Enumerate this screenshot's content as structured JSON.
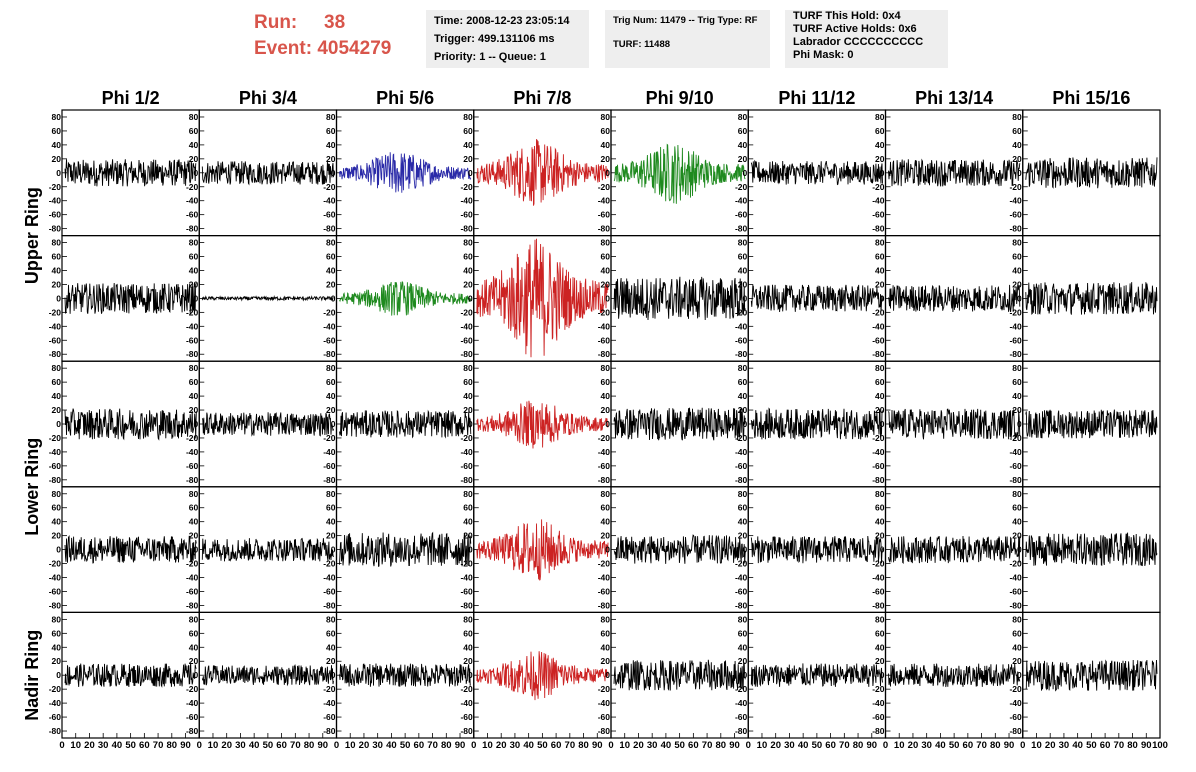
{
  "header": {
    "run_label": "Run:",
    "run_value": "38",
    "event_label": "Event:",
    "event_value": "4054279"
  },
  "info_time": {
    "time": "Time: 2008-12-23 23:05:14",
    "trigger": "Trigger: 499.131106 ms",
    "priority": "Priority: 1 -- Queue: 1"
  },
  "info_trig": {
    "trig": "Trig Num: 11479 -- Trig Type: RF",
    "turf": "TURF: 11488"
  },
  "info_turf": {
    "this_hold": "TURF This Hold: 0x4",
    "active_holds": "TURF Active Holds: 0x6",
    "labrador": "Labrador CCCCCCCCCC",
    "phi_mask": "Phi Mask: 0"
  },
  "chart_data": {
    "type": "line",
    "columns": [
      "Phi 1/2",
      "Phi 3/4",
      "Phi 5/6",
      "Phi 7/8",
      "Phi 9/10",
      "Phi 11/12",
      "Phi 13/14",
      "Phi 15/16"
    ],
    "row_labels": [
      "Upper Ring",
      "Lower Ring",
      "Nadir Ring"
    ],
    "xlim": [
      0,
      100
    ],
    "ylim": [
      -90,
      90
    ],
    "x_ticks": [
      0,
      10,
      20,
      30,
      40,
      50,
      60,
      70,
      80,
      90,
      100
    ],
    "y_ticks": [
      -80,
      -60,
      -40,
      -20,
      0,
      20,
      40,
      60,
      80
    ],
    "colors": {
      "black": "#000000",
      "blue": "#2a2aa8",
      "red": "#cc2222",
      "green": "#1f8a1f"
    },
    "panels": [
      [
        "black",
        "black",
        "blue",
        "red",
        "green",
        "black",
        "black",
        "black"
      ],
      [
        "black",
        "black",
        "green",
        "red",
        "black",
        "black",
        "black",
        "black"
      ],
      [
        "black",
        "black",
        "black",
        "red",
        "black",
        "black",
        "black",
        "black"
      ],
      [
        "black",
        "black",
        "black",
        "red",
        "black",
        "black",
        "black",
        "black"
      ],
      [
        "black",
        "black",
        "black",
        "red",
        "black",
        "black",
        "black",
        "black"
      ]
    ],
    "amplitudes": [
      [
        15,
        13,
        20,
        30,
        28,
        13,
        15,
        17
      ],
      [
        17,
        2,
        16,
        55,
        24,
        15,
        15,
        18
      ],
      [
        17,
        13,
        15,
        22,
        18,
        17,
        17,
        16
      ],
      [
        15,
        13,
        19,
        28,
        16,
        15,
        15,
        18
      ],
      [
        13,
        11,
        13,
        22,
        17,
        13,
        13,
        17
      ]
    ]
  }
}
